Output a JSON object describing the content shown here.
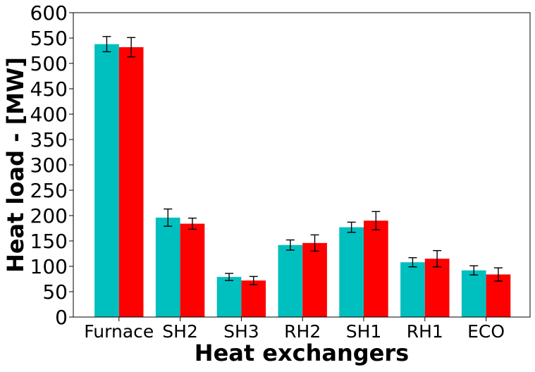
{
  "chart_data": {
    "type": "bar",
    "xlabel": "Heat exchangers",
    "ylabel": "Heat load - [MW]",
    "categories": [
      "Furnace",
      "SH2",
      "SH3",
      "RH2",
      "SH1",
      "RH1",
      "ECO"
    ],
    "ylim": [
      0,
      600
    ],
    "yticks": [
      0,
      50,
      100,
      150,
      200,
      250,
      300,
      350,
      400,
      450,
      500,
      550,
      600
    ],
    "grid": false,
    "legend": "none",
    "series": [
      {
        "color": "#00bfbf",
        "values": [
          538,
          196,
          79,
          142,
          177,
          108,
          92
        ],
        "errors": [
          15,
          17,
          7,
          10,
          10,
          9,
          9
        ]
      },
      {
        "color": "#ff0000",
        "values": [
          532,
          184,
          72,
          146,
          190,
          115,
          84
        ],
        "errors": [
          19,
          11,
          8,
          16,
          18,
          16,
          13
        ]
      }
    ]
  }
}
